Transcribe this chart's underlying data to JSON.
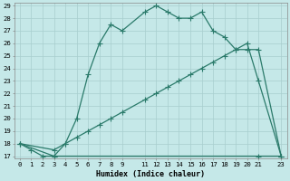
{
  "xlabel": "Humidex (Indice chaleur)",
  "bg_color": "#c5e8e8",
  "line_color": "#2a7a6a",
  "grid_color": "#a8cece",
  "ylim": [
    17,
    29
  ],
  "xlim": [
    -0.5,
    23.5
  ],
  "yticks": [
    17,
    18,
    19,
    20,
    21,
    22,
    23,
    24,
    25,
    26,
    27,
    28,
    29
  ],
  "xticks": [
    0,
    1,
    2,
    3,
    4,
    5,
    6,
    7,
    8,
    9,
    11,
    12,
    13,
    14,
    15,
    16,
    17,
    18,
    19,
    20,
    21,
    23
  ],
  "series1_x": [
    0,
    1,
    2,
    3,
    4,
    5,
    6,
    7,
    8,
    9,
    11,
    12,
    13,
    14,
    15,
    16,
    17,
    18,
    19,
    20,
    21,
    23
  ],
  "series1_y": [
    18.0,
    17.5,
    17.0,
    17.0,
    18.0,
    20.0,
    23.5,
    26.0,
    27.5,
    27.0,
    28.5,
    29.0,
    28.5,
    28.0,
    28.0,
    28.5,
    27.0,
    26.5,
    25.5,
    25.5,
    25.5,
    17.0
  ],
  "series2_x": [
    0,
    3,
    4,
    5,
    6,
    7,
    8,
    9,
    11,
    12,
    13,
    14,
    15,
    16,
    17,
    18,
    19,
    20,
    21,
    23
  ],
  "series2_y": [
    18.0,
    17.5,
    18.0,
    18.5,
    19.0,
    19.5,
    20.0,
    20.5,
    21.5,
    22.0,
    22.5,
    23.0,
    23.5,
    24.0,
    24.5,
    25.0,
    25.5,
    26.0,
    23.0,
    17.0
  ],
  "series3_x": [
    0,
    3,
    21,
    23
  ],
  "series3_y": [
    18.0,
    17.0,
    17.0,
    17.0
  ],
  "marker": "D",
  "markersize": 2.5,
  "linewidth": 0.9
}
